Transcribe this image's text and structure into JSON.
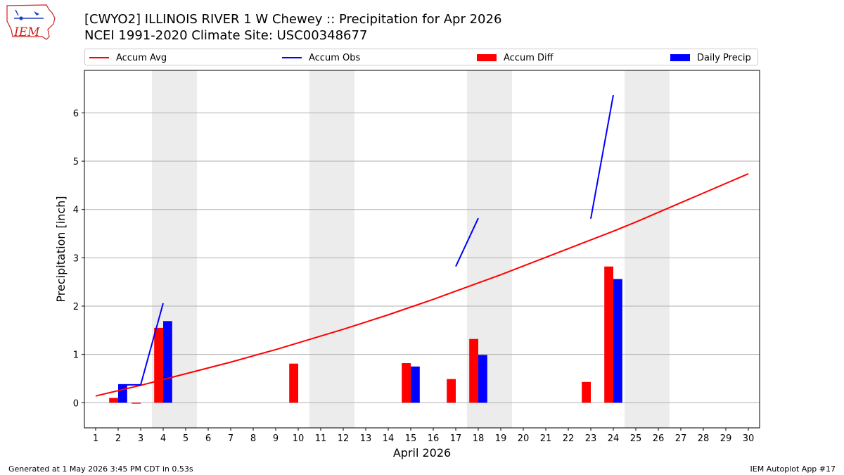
{
  "header": {
    "title_line1": "[CWYO2] ILLINOIS RIVER 1 W Chewey :: Precipitation for Apr 2026",
    "title_line2": "NCEI 1991-2020 Climate Site: USC00348677",
    "logo_text": "IEM"
  },
  "footer": {
    "left": "Generated at 1 May 2026 3:45 PM CDT in 0.53s",
    "right": "IEM Autoplot App #17"
  },
  "legend": {
    "accum_avg": "Accum Avg",
    "accum_obs": "Accum Obs",
    "accum_diff": "Accum Diff",
    "daily_precip": "Daily Precip"
  },
  "colors": {
    "accum_avg": "#ff0000",
    "accum_obs": "#0000ff",
    "accum_diff": "#ff0000",
    "daily_precip": "#0000ff",
    "weekend_shade": "#ececec",
    "grid": "#b0b0b0"
  },
  "chart_data": {
    "type": "bar",
    "xlabel": "April 2026",
    "ylabel": "Precipitation [inch]",
    "x": [
      1,
      2,
      3,
      4,
      5,
      6,
      7,
      8,
      9,
      10,
      11,
      12,
      13,
      14,
      15,
      16,
      17,
      18,
      19,
      20,
      21,
      22,
      23,
      24,
      25,
      26,
      27,
      28,
      29,
      30
    ],
    "xlim": [
      0.5,
      30.5
    ],
    "ylim": [
      -0.52,
      6.88
    ],
    "yticks": [
      0,
      1,
      2,
      3,
      4,
      5,
      6
    ],
    "grid": "horizontal",
    "legend_placement": "top",
    "weekend_shading": [
      [
        3.5,
        5.5
      ],
      [
        10.5,
        12.5
      ],
      [
        17.5,
        19.5
      ],
      [
        24.5,
        26.5
      ]
    ],
    "accum_avg": [
      0.14,
      0.25,
      0.36,
      0.48,
      0.6,
      0.72,
      0.84,
      0.97,
      1.1,
      1.24,
      1.38,
      1.52,
      1.67,
      1.82,
      1.98,
      2.14,
      2.31,
      2.48,
      2.65,
      2.83,
      3.01,
      3.19,
      3.37,
      3.55,
      3.74,
      3.94,
      4.14,
      4.34,
      4.54,
      4.74
    ],
    "accum_obs_segments": [
      [
        [
          2,
          0.37
        ],
        [
          3,
          0.37
        ],
        [
          4,
          2.06
        ]
      ],
      [
        [
          17,
          2.82
        ],
        [
          18,
          3.82
        ]
      ],
      [
        [
          23,
          3.81
        ],
        [
          24,
          6.37
        ]
      ]
    ],
    "accum_diff": [
      {
        "day": 2,
        "value": 0.1
      },
      {
        "day": 3,
        "value": -0.02
      },
      {
        "day": 4,
        "value": 1.55
      },
      {
        "day": 10,
        "value": 0.81
      },
      {
        "day": 15,
        "value": 0.82
      },
      {
        "day": 17,
        "value": 0.49
      },
      {
        "day": 18,
        "value": 1.32
      },
      {
        "day": 23,
        "value": 0.43
      },
      {
        "day": 24,
        "value": 2.82
      }
    ],
    "daily_precip": [
      {
        "day": 2,
        "value": 0.37
      },
      {
        "day": 4,
        "value": 1.69
      },
      {
        "day": 15,
        "value": 0.75
      },
      {
        "day": 18,
        "value": 0.99
      },
      {
        "day": 24,
        "value": 2.56
      }
    ]
  }
}
